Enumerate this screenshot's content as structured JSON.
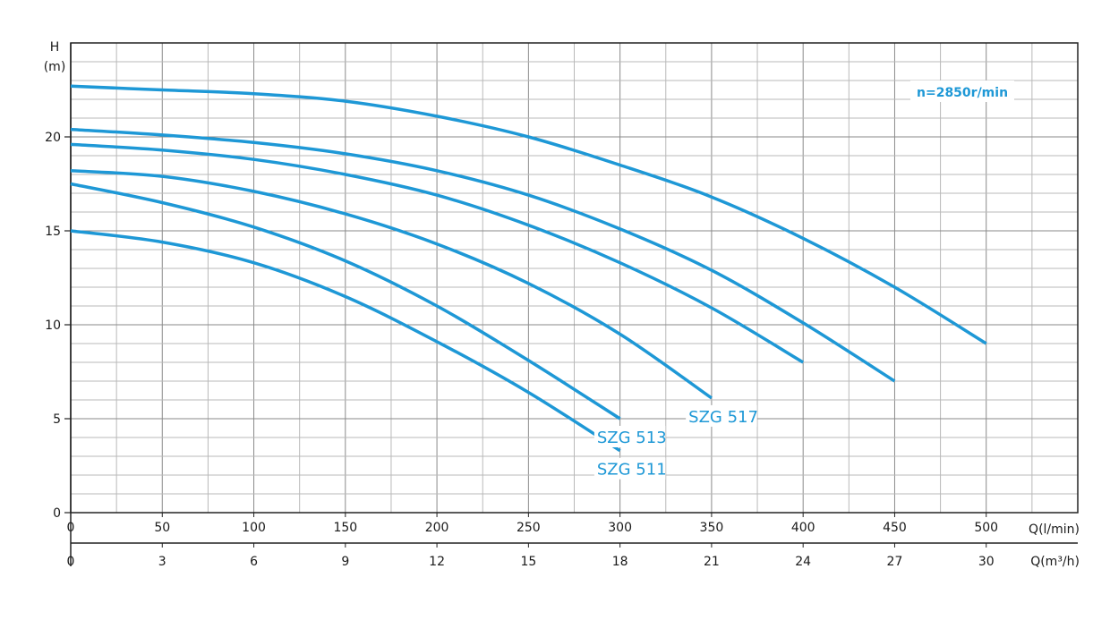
{
  "chart_data": {
    "type": "line",
    "ylabel_line1": "H",
    "ylabel_line2": "(m)",
    "xlabel_primary": "Q(l/min)",
    "xlabel_secondary": "Q(m³/h)",
    "annotation": "n=2850r/min",
    "xlim": [
      0,
      550
    ],
    "ylim": [
      0,
      25
    ],
    "x_ticks": [
      0,
      50,
      100,
      150,
      200,
      250,
      300,
      350,
      400,
      450,
      500
    ],
    "x_ticks_m3h": [
      0,
      3,
      6,
      9,
      12,
      15,
      18,
      21,
      24,
      27,
      30
    ],
    "y_ticks": [
      0,
      5,
      10,
      15,
      20
    ],
    "grid": true,
    "line_color": "#1e98d6",
    "series": [
      {
        "name": "SZG 511",
        "x": [
          0,
          50,
          100,
          150,
          200,
          250,
          300
        ],
        "y": [
          15.0,
          14.4,
          13.3,
          11.5,
          9.1,
          6.4,
          3.3
        ]
      },
      {
        "name": "SZG 513",
        "x": [
          0,
          50,
          100,
          150,
          200,
          250,
          300
        ],
        "y": [
          17.5,
          16.5,
          15.2,
          13.4,
          11.0,
          8.1,
          5.0
        ]
      },
      {
        "name": "SZG 517",
        "x": [
          0,
          50,
          100,
          150,
          200,
          250,
          300,
          350
        ],
        "y": [
          18.2,
          17.9,
          17.1,
          15.9,
          14.3,
          12.2,
          9.5,
          6.1
        ]
      },
      {
        "name": "",
        "x": [
          0,
          50,
          100,
          150,
          200,
          250,
          300,
          350,
          400
        ],
        "y": [
          19.6,
          19.3,
          18.8,
          18.0,
          16.9,
          15.3,
          13.3,
          10.9,
          8.0
        ]
      },
      {
        "name": "",
        "x": [
          0,
          50,
          100,
          150,
          200,
          250,
          300,
          350,
          400,
          450
        ],
        "y": [
          20.4,
          20.1,
          19.7,
          19.1,
          18.2,
          16.9,
          15.1,
          12.9,
          10.1,
          7.0
        ]
      },
      {
        "name": "",
        "x": [
          0,
          50,
          100,
          150,
          200,
          250,
          300,
          350,
          400,
          450,
          500
        ],
        "y": [
          22.7,
          22.5,
          22.3,
          21.9,
          21.1,
          20.0,
          18.5,
          16.8,
          14.6,
          12.0,
          9.0
        ]
      }
    ]
  }
}
